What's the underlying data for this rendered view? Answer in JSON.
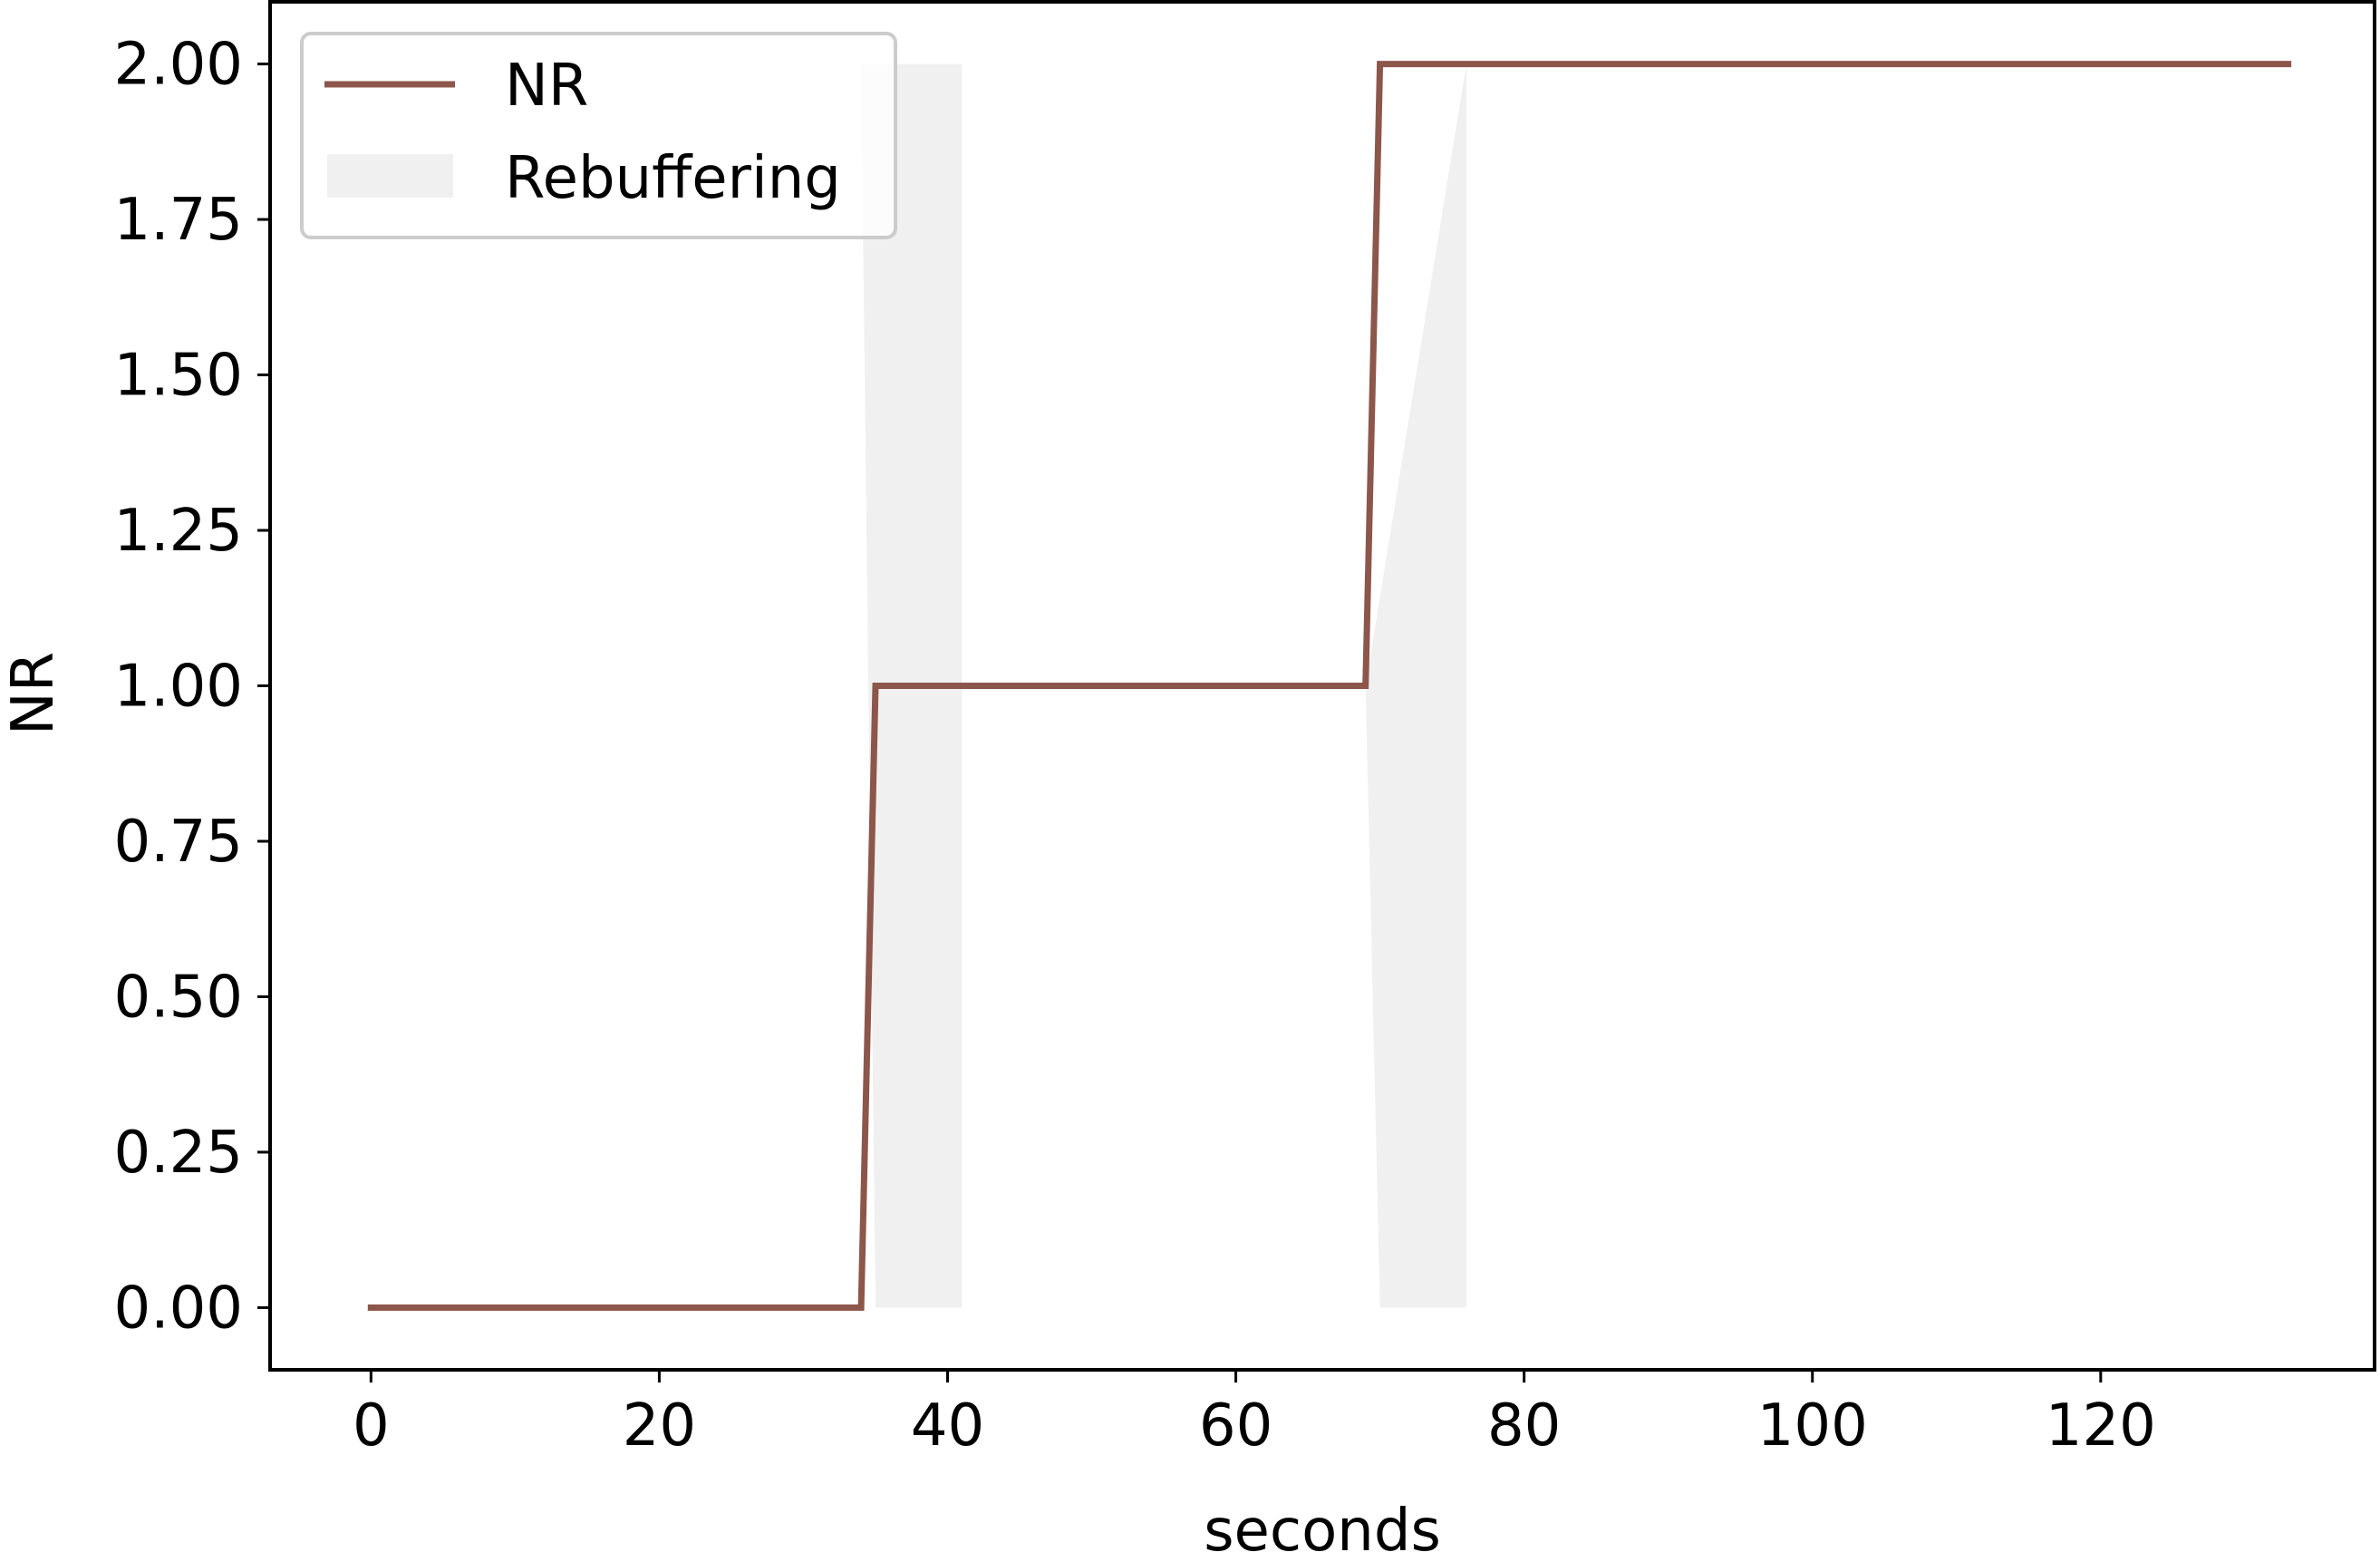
{
  "chart_data": {
    "type": "line",
    "xlabel": "seconds",
    "ylabel": "NR",
    "xlim": [
      -7,
      139
    ],
    "ylim": [
      -0.1,
      2.1
    ],
    "x_ticks": [
      0,
      20,
      40,
      60,
      80,
      100,
      120
    ],
    "x_tick_labels": [
      "0",
      "20",
      "40",
      "60",
      "80",
      "100",
      "120"
    ],
    "y_ticks": [
      0,
      0.25,
      0.5,
      0.75,
      1.0,
      1.25,
      1.5,
      1.75,
      2.0
    ],
    "y_tick_labels": [
      "0.00",
      "0.25",
      "0.50",
      "0.75",
      "1.00",
      "1.25",
      "1.50",
      "1.75",
      "2.00"
    ],
    "grid": false,
    "legend_placement": "upper-left",
    "legend": [
      "NR",
      "Rebuffering"
    ],
    "series": [
      {
        "name": "NR",
        "color": "#8c564b",
        "x": [
          0,
          34,
          35,
          69,
          70,
          133
        ],
        "y": [
          0,
          0,
          1,
          1,
          2,
          2
        ]
      }
    ],
    "shaded_regions": [
      {
        "name": "Rebuffering",
        "color": "#f0f0f0",
        "polygons": [
          {
            "x": [
              34,
              35,
              41,
              41
            ],
            "y": [
              2,
              0,
              0,
              2
            ]
          },
          {
            "x": [
              69,
              70,
              76,
              76
            ],
            "y": [
              1,
              0,
              0,
              2
            ]
          }
        ]
      }
    ]
  }
}
